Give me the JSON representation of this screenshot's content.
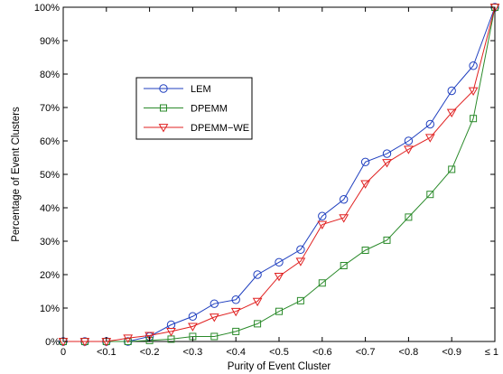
{
  "chart_data": {
    "type": "line",
    "xlabel": "Purity of Event Cluster",
    "ylabel": "Percentage of Event Clusters",
    "x": [
      0,
      0.05,
      0.1,
      0.15,
      0.2,
      0.25,
      0.3,
      0.35,
      0.4,
      0.45,
      0.5,
      0.55,
      0.6,
      0.65,
      0.7,
      0.75,
      0.8,
      0.85,
      0.9,
      0.95,
      1.0
    ],
    "x_ticks": [
      0,
      0.1,
      0.2,
      0.3,
      0.4,
      0.5,
      0.6,
      0.7,
      0.8,
      0.9,
      1.0
    ],
    "x_tick_labels": [
      "0",
      "<0.1",
      "<0.2",
      "<0.3",
      "<0.4",
      "<0.5",
      "<0.6",
      "<0.7",
      "<0.8",
      "<0.9",
      "≤ 1"
    ],
    "xlim": [
      0,
      1
    ],
    "ylim": [
      0,
      100
    ],
    "y_ticks": [
      0,
      10,
      20,
      30,
      40,
      50,
      60,
      70,
      80,
      90,
      100
    ],
    "y_tick_labels": [
      "0%",
      "10%",
      "20%",
      "30%",
      "40%",
      "50%",
      "60%",
      "70%",
      "80%",
      "90%",
      "100%"
    ],
    "grid": false,
    "legend_position": "upper-left inside",
    "series": [
      {
        "name": "LEM",
        "color": "#1f3fbf",
        "marker": "circle",
        "values": [
          0,
          0,
          0,
          0,
          1.5,
          5,
          7.5,
          11.3,
          12.5,
          20,
          23.7,
          27.5,
          37.5,
          42.5,
          53.7,
          56.2,
          60,
          65,
          75,
          82.5,
          100
        ]
      },
      {
        "name": "DPEMM",
        "color": "#2a8a2a",
        "marker": "square",
        "values": [
          0,
          0,
          0,
          0,
          0.3,
          0.7,
          1.5,
          1.5,
          3,
          5.3,
          9,
          12.2,
          17.5,
          22.7,
          27.3,
          30.3,
          37.2,
          44,
          51.5,
          66.7,
          100
        ]
      },
      {
        "name": "DPEMM−WE",
        "color": "#e02020",
        "marker": "triangle-down",
        "values": [
          0,
          0,
          0,
          1,
          1.8,
          3,
          4.5,
          7.3,
          9,
          12,
          19.5,
          24,
          35,
          37,
          47.2,
          53.5,
          57.5,
          61,
          68.5,
          75,
          100
        ]
      }
    ]
  }
}
